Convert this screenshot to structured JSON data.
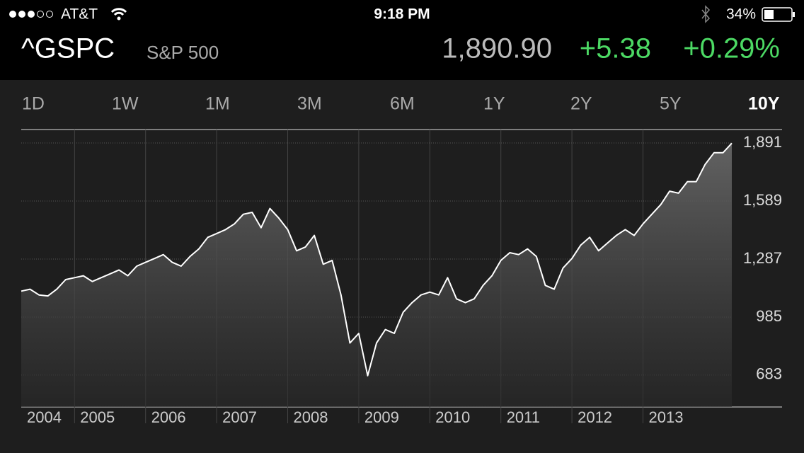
{
  "status_bar": {
    "carrier": "AT&T",
    "time": "9:18 PM",
    "battery": "34%"
  },
  "quote": {
    "symbol": "^GSPC",
    "name": "S&P 500",
    "price": "1,890.90",
    "change": "+5.38",
    "change_percent": "+0.29%"
  },
  "ranges": [
    {
      "label": "1D",
      "selected": false
    },
    {
      "label": "1W",
      "selected": false
    },
    {
      "label": "1M",
      "selected": false
    },
    {
      "label": "3M",
      "selected": false
    },
    {
      "label": "6M",
      "selected": false
    },
    {
      "label": "1Y",
      "selected": false
    },
    {
      "label": "2Y",
      "selected": false
    },
    {
      "label": "5Y",
      "selected": false
    },
    {
      "label": "10Y",
      "selected": true
    }
  ],
  "chart_data": {
    "type": "line",
    "color": "#ffffff",
    "x": [
      2004.25,
      2004.375,
      2004.5,
      2004.625,
      2004.75,
      2004.875,
      2005,
      2005.125,
      2005.25,
      2005.375,
      2005.5,
      2005.625,
      2005.75,
      2005.875,
      2006,
      2006.125,
      2006.25,
      2006.375,
      2006.5,
      2006.625,
      2006.75,
      2006.875,
      2007,
      2007.125,
      2007.25,
      2007.375,
      2007.5,
      2007.625,
      2007.75,
      2007.875,
      2008,
      2008.125,
      2008.25,
      2008.375,
      2008.5,
      2008.625,
      2008.75,
      2008.875,
      2009,
      2009.125,
      2009.25,
      2009.375,
      2009.5,
      2009.625,
      2009.75,
      2009.875,
      2010,
      2010.125,
      2010.25,
      2010.375,
      2010.5,
      2010.625,
      2010.75,
      2010.875,
      2011,
      2011.125,
      2011.25,
      2011.375,
      2011.5,
      2011.625,
      2011.75,
      2011.875,
      2012,
      2012.125,
      2012.25,
      2012.375,
      2012.5,
      2012.625,
      2012.75,
      2012.875,
      2013,
      2013.125,
      2013.25,
      2013.375,
      2013.5,
      2013.625,
      2013.75,
      2013.875,
      2014,
      2014.125,
      2014.25
    ],
    "values": [
      1120,
      1130,
      1100,
      1095,
      1130,
      1180,
      1190,
      1200,
      1170,
      1190,
      1210,
      1230,
      1200,
      1250,
      1270,
      1290,
      1310,
      1270,
      1250,
      1300,
      1340,
      1400,
      1420,
      1440,
      1470,
      1520,
      1530,
      1450,
      1550,
      1500,
      1440,
      1330,
      1350,
      1410,
      1260,
      1280,
      1100,
      850,
      900,
      680,
      850,
      920,
      900,
      1010,
      1060,
      1100,
      1115,
      1100,
      1190,
      1080,
      1060,
      1080,
      1150,
      1200,
      1280,
      1320,
      1310,
      1340,
      1300,
      1150,
      1130,
      1240,
      1290,
      1360,
      1400,
      1330,
      1370,
      1410,
      1440,
      1410,
      1470,
      1520,
      1570,
      1640,
      1630,
      1690,
      1690,
      1780,
      1840,
      1840,
      1890
    ],
    "xlim": [
      2004.25,
      2014.25
    ],
    "xticks": [
      {
        "value": 2004,
        "label": "2004"
      },
      {
        "value": 2005,
        "label": "2005"
      },
      {
        "value": 2006,
        "label": "2006"
      },
      {
        "value": 2007,
        "label": "2007"
      },
      {
        "value": 2008,
        "label": "2008"
      },
      {
        "value": 2009,
        "label": "2009"
      },
      {
        "value": 2010,
        "label": "2010"
      },
      {
        "value": 2011,
        "label": "2011"
      },
      {
        "value": 2012,
        "label": "2012"
      },
      {
        "value": 2013,
        "label": "2013"
      }
    ],
    "ylim": [
      517,
      1961
    ],
    "yticks": [
      683,
      985,
      {
        "value": 1287,
        "label": "1,287"
      },
      {
        "value": 1589,
        "label": "1,589"
      },
      {
        "value": 1891,
        "label": "1,891"
      }
    ],
    "grid": true
  }
}
